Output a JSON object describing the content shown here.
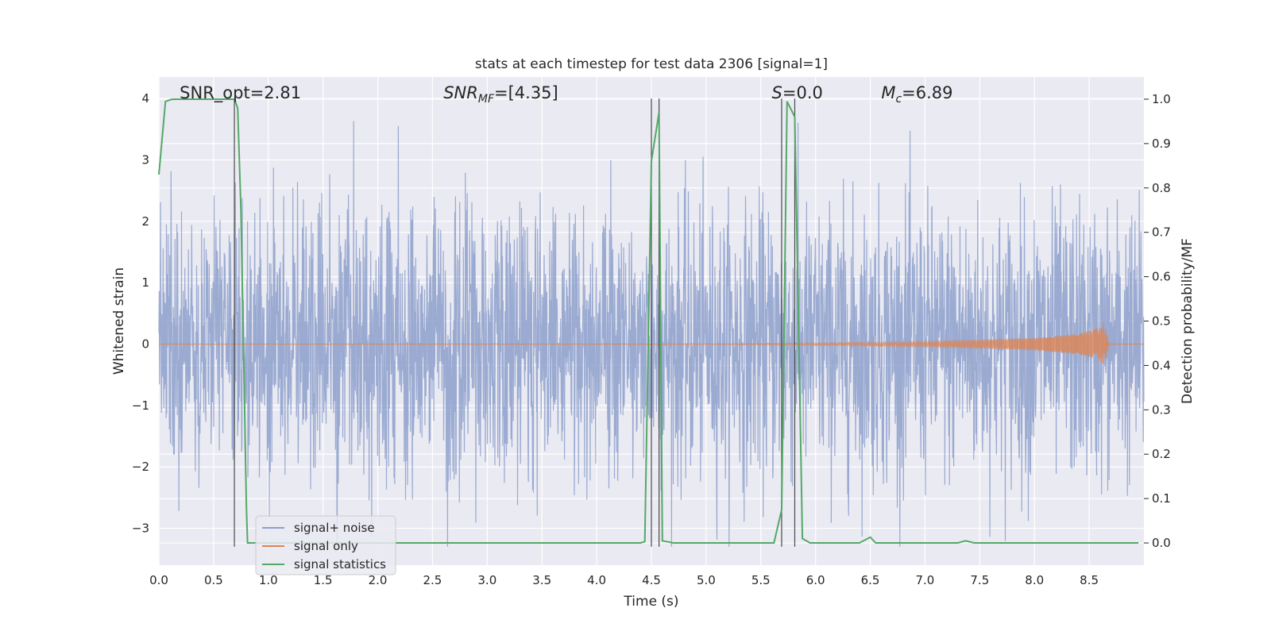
{
  "chart_data": {
    "type": "line",
    "title": "stats at each timestep for test data 2306 [signal=1]",
    "xlabel": "Time (s)",
    "ylabel_left": "Whitened strain",
    "ylabel_right": "Detection probability/MF",
    "xlim": [
      0,
      9.0
    ],
    "ylim_left": [
      -3.6,
      4.35
    ],
    "ylim_right": [
      -0.05,
      1.05
    ],
    "xticks": [
      "0.0",
      "0.5",
      "1.0",
      "1.5",
      "2.0",
      "2.5",
      "3.0",
      "3.5",
      "4.0",
      "4.5",
      "5.0",
      "5.5",
      "6.0",
      "6.5",
      "7.0",
      "7.5",
      "8.0",
      "8.5"
    ],
    "yticks_left": [
      "−3",
      "−2",
      "−1",
      "0",
      "1",
      "2",
      "3",
      "4"
    ],
    "yticks_right": [
      "0.0",
      "0.1",
      "0.2",
      "0.3",
      "0.4",
      "0.5",
      "0.6",
      "0.7",
      "0.8",
      "0.9",
      "1.0"
    ],
    "grid": true,
    "legend_position": "lower-left",
    "annotations": [
      {
        "text": "SNR_opt=2.81",
        "x": 0.19
      },
      {
        "text": "SNR_MF=[4.35]",
        "x": 2.6
      },
      {
        "text": "S=0.0",
        "x": 5.6
      },
      {
        "text": "M_c=6.89",
        "x": 6.6
      }
    ],
    "vertical_lines_x": [
      0.69,
      4.5,
      4.57,
      5.69,
      5.81
    ],
    "series": [
      {
        "name": "signal+ noise",
        "axis": "left",
        "color": "#8c9fcb",
        "description_values": {
          "typical_std": 1.1,
          "max": 4.0,
          "min": -3.3
        }
      },
      {
        "name": "signal only",
        "axis": "left",
        "color": "#dd8452",
        "chirp_envelope": {
          "x": [
            0,
            5.0,
            6.0,
            7.0,
            8.0,
            8.4,
            8.6,
            8.65,
            8.68,
            9.0
          ],
          "amp": [
            0,
            0.005,
            0.02,
            0.04,
            0.1,
            0.17,
            0.27,
            0.4,
            0,
            0
          ]
        }
      },
      {
        "name": "signal statistics",
        "axis": "right",
        "color": "#55a868",
        "x": [
          0.0,
          0.06,
          0.12,
          0.5,
          0.69,
          0.72,
          0.75,
          0.8,
          0.81,
          0.9,
          4.4,
          4.44,
          4.5,
          4.57,
          4.6,
          4.7,
          5.62,
          5.69,
          5.74,
          5.81,
          5.88,
          5.95,
          6.4,
          6.5,
          6.55,
          7.3,
          7.37,
          7.45,
          8.95
        ],
        "y": [
          0.83,
          0.995,
          1.0,
          1.0,
          1.0,
          0.98,
          0.75,
          0.08,
          0.0,
          0.0,
          0.0,
          0.003,
          0.86,
          0.97,
          0.005,
          0.0,
          0.0,
          0.075,
          0.995,
          0.96,
          0.01,
          0.0,
          0.0,
          0.013,
          0.0,
          0.0,
          0.005,
          0.0,
          0.0
        ]
      }
    ]
  }
}
